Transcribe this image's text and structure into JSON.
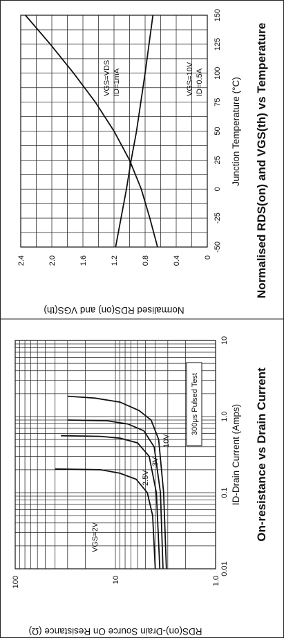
{
  "chart_data": [
    {
      "type": "line",
      "title": "On-resistance vs Drain Current",
      "xlabel": "ID-Drain Current (Amps)",
      "ylabel": "RDS(on)-Drain Source On Resistance (Ω)",
      "xscale": "log",
      "yscale": "log",
      "xlim": [
        0.01,
        10
      ],
      "ylim": [
        1,
        100
      ],
      "x_ticks": [
        "0.01",
        "0.1",
        "1.0",
        "10"
      ],
      "y_ticks": [
        "1.0",
        "10",
        "100"
      ],
      "grid": true,
      "annotation": "300μs Pulsed Test",
      "series": [
        {
          "name": "VGS=2V",
          "points": [
            [
              0.01,
              4.0
            ],
            [
              0.05,
              4.25
            ],
            [
              0.1,
              4.8
            ],
            [
              0.15,
              6.2
            ],
            [
              0.18,
              9.0
            ],
            [
              0.2,
              14.0
            ],
            [
              0.205,
              40.0
            ]
          ]
        },
        {
          "name": "2.5V",
          "points": [
            [
              0.01,
              3.6
            ],
            [
              0.1,
              3.9
            ],
            [
              0.3,
              4.6
            ],
            [
              0.45,
              6.0
            ],
            [
              0.52,
              9.0
            ],
            [
              0.55,
              14.0
            ],
            [
              0.56,
              35.0
            ]
          ]
        },
        {
          "name": "3V",
          "points": [
            [
              0.01,
              3.35
            ],
            [
              0.1,
              3.55
            ],
            [
              0.4,
              4.1
            ],
            [
              0.65,
              5.2
            ],
            [
              0.8,
              7.5
            ],
            [
              0.88,
              12.0
            ],
            [
              0.9,
              30.0
            ]
          ]
        },
        {
          "name": "10V",
          "points": [
            [
              0.01,
              3.1
            ],
            [
              0.1,
              3.3
            ],
            [
              0.5,
              3.7
            ],
            [
              0.9,
              4.4
            ],
            [
              1.2,
              5.8
            ],
            [
              1.55,
              9.0
            ],
            [
              1.75,
              16.0
            ],
            [
              1.85,
              30.0
            ]
          ]
        }
      ]
    },
    {
      "type": "line",
      "title": "Normalised RDS(on) and VGS(th) vs Temperature",
      "xlabel": "Junction Temperature (°C)",
      "ylabel": "Normalised RDS(on) and VGS(th)",
      "xlim": [
        -50,
        150
      ],
      "ylim": [
        0,
        2.4
      ],
      "x_ticks": [
        "-50",
        "-25",
        "0",
        "25",
        "50",
        "75",
        "100",
        "125",
        "150"
      ],
      "y_ticks": [
        "0",
        "0.4",
        "0.8",
        "1.2",
        "1.6",
        "2.0",
        "2.4"
      ],
      "grid": true,
      "series": [
        {
          "name": "VGS=10V ID=0.5A",
          "points": [
            [
              -50,
              0.64
            ],
            [
              -25,
              0.74
            ],
            [
              0,
              0.85
            ],
            [
              25,
              1.0
            ],
            [
              50,
              1.2
            ],
            [
              75,
              1.44
            ],
            [
              100,
              1.72
            ],
            [
              125,
              2.02
            ],
            [
              150,
              2.34
            ]
          ]
        },
        {
          "name": "VGS=VDS ID=1mA",
          "points": [
            [
              -50,
              1.18
            ],
            [
              0,
              1.04
            ],
            [
              25,
              0.98
            ],
            [
              50,
              0.91
            ],
            [
              100,
              0.8
            ],
            [
              150,
              0.7
            ]
          ]
        }
      ]
    }
  ],
  "left": {
    "title": "On-resistance vs Drain Current",
    "xlabel": "ID-Drain Current (Amps)",
    "ylabel": "RDS(on)-Drain Source On Resistance (Ω)",
    "note": "300μs Pulsed Test",
    "labels": [
      "VGS=2V",
      "2.5V",
      "3V",
      "10V"
    ]
  },
  "right": {
    "title": "Normalised RDS(on) and VGS(th) vs Temperature",
    "xlabel": "Junction Temperature (°C)",
    "ylabel": "Normalised RDS(on) and VGS(th)",
    "labels": {
      "a1": "VGS=10V",
      "a2": "ID=0.5A",
      "b1": "VGS=VDS",
      "b2": "ID=1mA"
    }
  }
}
